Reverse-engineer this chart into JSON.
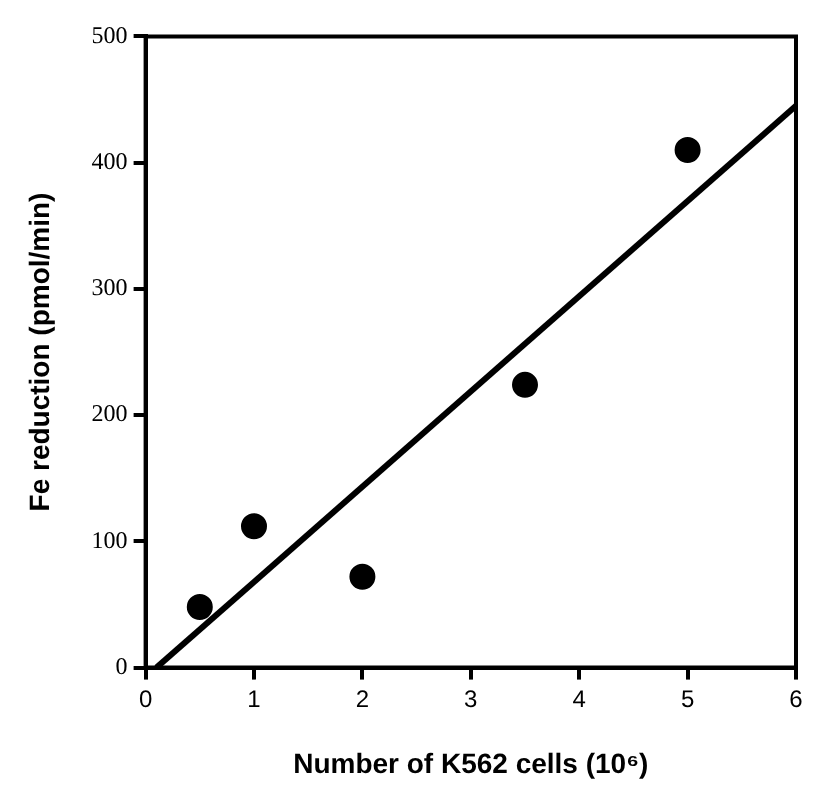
{
  "chart_data": {
    "type": "scatter",
    "xlabel": "Number of K562 cells (10⁶)",
    "ylabel": "Fe reduction (pmol/min)",
    "xlim": [
      0,
      6
    ],
    "xticks": [
      0,
      1,
      2,
      3,
      4,
      5,
      6
    ],
    "ylim": [
      0,
      500
    ],
    "yticks": [
      0,
      100,
      200,
      300,
      400,
      500
    ],
    "grid": false,
    "legend": false,
    "series": [
      {
        "color": "#000000",
        "marker": "circle",
        "x": [
          0.5,
          1,
          2,
          3.5,
          5
        ],
        "values": [
          48,
          112,
          72,
          224,
          410
        ]
      },
      {
        "type": "line",
        "color": "#000000",
        "marker": "none",
        "line_style": "solid",
        "x": [
          0.1,
          6
        ],
        "values": [
          0,
          445
        ]
      }
    ]
  }
}
